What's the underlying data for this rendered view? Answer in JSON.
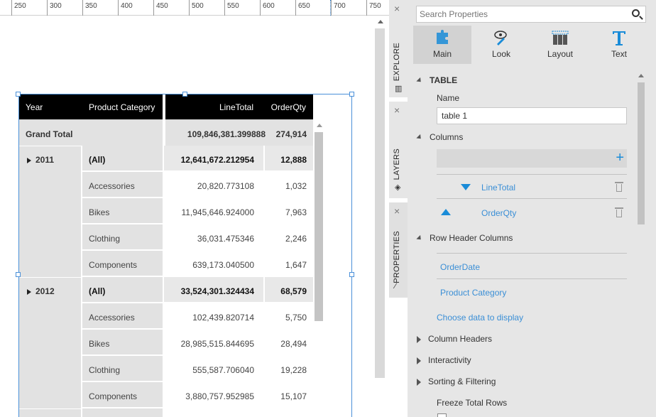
{
  "ruler": {
    "ticks": [
      "250",
      "300",
      "350",
      "400",
      "450",
      "500",
      "550",
      "600",
      "650",
      "700",
      "750"
    ]
  },
  "table": {
    "headers": {
      "year": "Year",
      "category": "Product Category",
      "line_total": "LineTotal",
      "order_qty": "OrderQty"
    },
    "grand_total": {
      "label": "Grand Total",
      "line_total": "109,846,381.399888",
      "order_qty": "274,914"
    },
    "groups": [
      {
        "year": "2011",
        "rows": [
          {
            "category": "(All)",
            "line_total": "12,641,672.212954",
            "order_qty": "12,888"
          },
          {
            "category": "Accessories",
            "line_total": "20,820.773108",
            "order_qty": "1,032"
          },
          {
            "category": "Bikes",
            "line_total": "11,945,646.924000",
            "order_qty": "7,963"
          },
          {
            "category": "Clothing",
            "line_total": "36,031.475346",
            "order_qty": "2,246"
          },
          {
            "category": "Components",
            "line_total": "639,173.040500",
            "order_qty": "1,647"
          }
        ]
      },
      {
        "year": "2012",
        "rows": [
          {
            "category": "(All)",
            "line_total": "33,524,301.324434",
            "order_qty": "68,579"
          },
          {
            "category": "Accessories",
            "line_total": "102,439.820714",
            "order_qty": "5,750"
          },
          {
            "category": "Bikes",
            "line_total": "28,985,515.844695",
            "order_qty": "28,494"
          },
          {
            "category": "Clothing",
            "line_total": "555,587.706040",
            "order_qty": "19,228"
          },
          {
            "category": "Components",
            "line_total": "3,880,757.952985",
            "order_qty": "15,107"
          }
        ]
      }
    ]
  },
  "sidetabs": {
    "explore": "EXPLORE",
    "layers": "LAYERS",
    "properties": "PROPERTIES",
    "close": "×"
  },
  "panel": {
    "search_placeholder": "Search Properties",
    "tabs": {
      "main": "Main",
      "look": "Look",
      "layout": "Layout",
      "text": "Text"
    },
    "section_title": "TABLE",
    "name_label": "Name",
    "name_value": "table 1",
    "columns_label": "Columns",
    "columns": [
      {
        "name": "LineTotal",
        "sort": "descending"
      },
      {
        "name": "OrderQty",
        "sort": "ascending"
      }
    ],
    "row_header_label": "Row Header Columns",
    "row_headers": [
      "OrderDate",
      "Product Category"
    ],
    "choose_data": "Choose data to display",
    "collapsed_sections": [
      "Column Headers",
      "Interactivity",
      "Sorting & Filtering"
    ],
    "freeze_total_rows": "Freeze Total Rows"
  },
  "colors": {
    "accent": "#1a8cd8",
    "link": "#3b8fd6",
    "header_bg": "#000000",
    "panel_bg": "#e6e6e6"
  }
}
